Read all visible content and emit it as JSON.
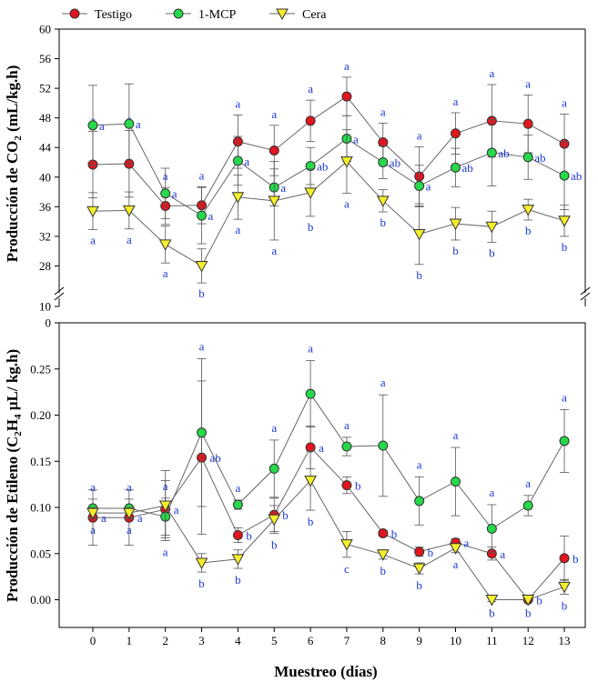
{
  "chart_data": [
    {
      "type": "line",
      "panel": "top",
      "ylabel": "Producción de CO2 (mL/kg.h)",
      "ylabel_parts": [
        "Producción de CO",
        "2",
        " (mL/kg.h)"
      ],
      "ylim_lower": [
        10,
        16
      ],
      "ylim": [
        24,
        60
      ],
      "axis_break": true,
      "yticks": [
        10,
        28,
        32,
        36,
        40,
        44,
        48,
        52,
        56,
        60
      ],
      "x": [
        0,
        1,
        2,
        3,
        4,
        5,
        6,
        7,
        8,
        9,
        10,
        11,
        12,
        13
      ],
      "series": [
        {
          "name": "Testigo",
          "color": "#e0161e",
          "marker": "circle",
          "values": [
            41.7,
            41.8,
            36.1,
            36.2,
            44.8,
            43.6,
            47.6,
            50.9,
            44.7,
            40.1,
            45.9,
            47.6,
            47.2,
            44.5
          ],
          "err": [
            4.5,
            4.5,
            2.5,
            2.5,
            3.6,
            3.4,
            2.8,
            2.6,
            2.6,
            4.0,
            2.8,
            4.9,
            3.9,
            4.0
          ],
          "labels": [
            "a",
            "a",
            "a",
            "a",
            "a",
            "a",
            "a",
            "a",
            "a",
            "a",
            "a",
            "a",
            "a",
            "a"
          ]
        },
        {
          "name": "1-MCP",
          "color": "#26d84a",
          "marker": "circle",
          "values": [
            47.0,
            47.2,
            37.8,
            34.8,
            42.2,
            38.6,
            41.5,
            45.2,
            42.0,
            38.8,
            41.3,
            43.3,
            42.7,
            40.2
          ],
          "err": [
            5.4,
            5.4,
            3.4,
            3.8,
            3.3,
            2.5,
            2.5,
            3.1,
            2.2,
            2.8,
            2.6,
            4.5,
            3.0,
            4.6
          ],
          "labels": [
            "a",
            "a",
            "a",
            "a",
            "a",
            "a",
            "ab",
            "a",
            "ab",
            "a",
            "ab",
            "ab",
            "ab",
            "ab"
          ]
        },
        {
          "name": "Cera",
          "color": "#f5ee2c",
          "marker": "triangle-down",
          "values": [
            35.4,
            35.5,
            30.9,
            28.0,
            37.3,
            36.8,
            37.9,
            42.1,
            36.8,
            32.3,
            33.7,
            33.3,
            35.6,
            34.1
          ],
          "err": [
            2.5,
            2.5,
            2.5,
            2.3,
            3.0,
            5.3,
            3.2,
            4.3,
            1.5,
            4.1,
            2.2,
            2.1,
            1.4,
            2.1
          ],
          "labels": [
            "a",
            "a",
            "a",
            "b",
            "a",
            "a",
            "b",
            "a",
            "b",
            "b",
            "b",
            "b",
            "b",
            "b"
          ]
        }
      ]
    },
    {
      "type": "line",
      "panel": "bottom",
      "ylabel": "Producción de Etileno (C2H4 µL/ kg.h)",
      "ylabel_parts": [
        "Producción de Etileno (C",
        "2",
        "H",
        "4",
        " µL/ kg.h)"
      ],
      "xlabel": "Muestreo (días)",
      "ylim": [
        -0.03,
        0.3
      ],
      "yticks": [
        0.0,
        0.05,
        0.1,
        0.15,
        0.2,
        0.25
      ],
      "ytick_labels": [
        "0.00",
        "0.05",
        "0.10",
        "0.15",
        "0.20",
        "0.25"
      ],
      "top_tick_label": "0",
      "x": [
        0,
        1,
        2,
        3,
        4,
        5,
        6,
        7,
        8,
        9,
        10,
        11,
        12,
        13
      ],
      "series": [
        {
          "name": "Testigo",
          "color": "#e0161e",
          "marker": "circle",
          "values": [
            0.089,
            0.089,
            0.098,
            0.154,
            0.07,
            0.092,
            0.165,
            0.124,
            0.072,
            0.052,
            0.062,
            0.05,
            0.0,
            0.045
          ],
          "err": [
            0.03,
            0.03,
            0.031,
            0.083,
            0.008,
            0.018,
            0.023,
            0.009,
            0.003,
            0.005,
            0.004,
            0.007,
            0.002,
            0.024
          ],
          "labels": [
            "a",
            "a",
            "a",
            "ab",
            "b",
            "b",
            "a",
            "b",
            "b",
            "b",
            "a",
            "a",
            "b",
            "b"
          ]
        },
        {
          "name": "1-MCP",
          "color": "#26d84a",
          "marker": "circle",
          "values": [
            0.099,
            0.099,
            0.09,
            0.181,
            0.103,
            0.142,
            0.223,
            0.166,
            0.167,
            0.107,
            0.128,
            0.077,
            0.102,
            0.172
          ],
          "err": [
            0.01,
            0.01,
            0.02,
            0.08,
            0.005,
            0.031,
            0.036,
            0.01,
            0.055,
            0.026,
            0.037,
            0.026,
            0.011,
            0.034
          ],
          "labels": [
            "a",
            "a",
            "a",
            "a",
            "a",
            "a",
            "a",
            "a",
            "a",
            "a",
            "a",
            "a",
            "a",
            "a"
          ]
        },
        {
          "name": "Cera",
          "color": "#f5ee2c",
          "marker": "triangle-down",
          "values": [
            0.094,
            0.094,
            0.102,
            0.04,
            0.044,
            0.087,
            0.129,
            0.06,
            0.049,
            0.034,
            0.056,
            0.0,
            0.0,
            0.014
          ],
          "err": [
            0.006,
            0.006,
            0.038,
            0.01,
            0.01,
            0.015,
            0.032,
            0.014,
            0.005,
            0.006,
            0.005,
            0.002,
            0.002,
            0.008
          ],
          "labels": [
            "a",
            "a",
            "a",
            "b",
            "b",
            "b",
            "b",
            "c",
            "b",
            "b",
            "a",
            "b",
            "b",
            "b"
          ]
        }
      ]
    }
  ]
}
